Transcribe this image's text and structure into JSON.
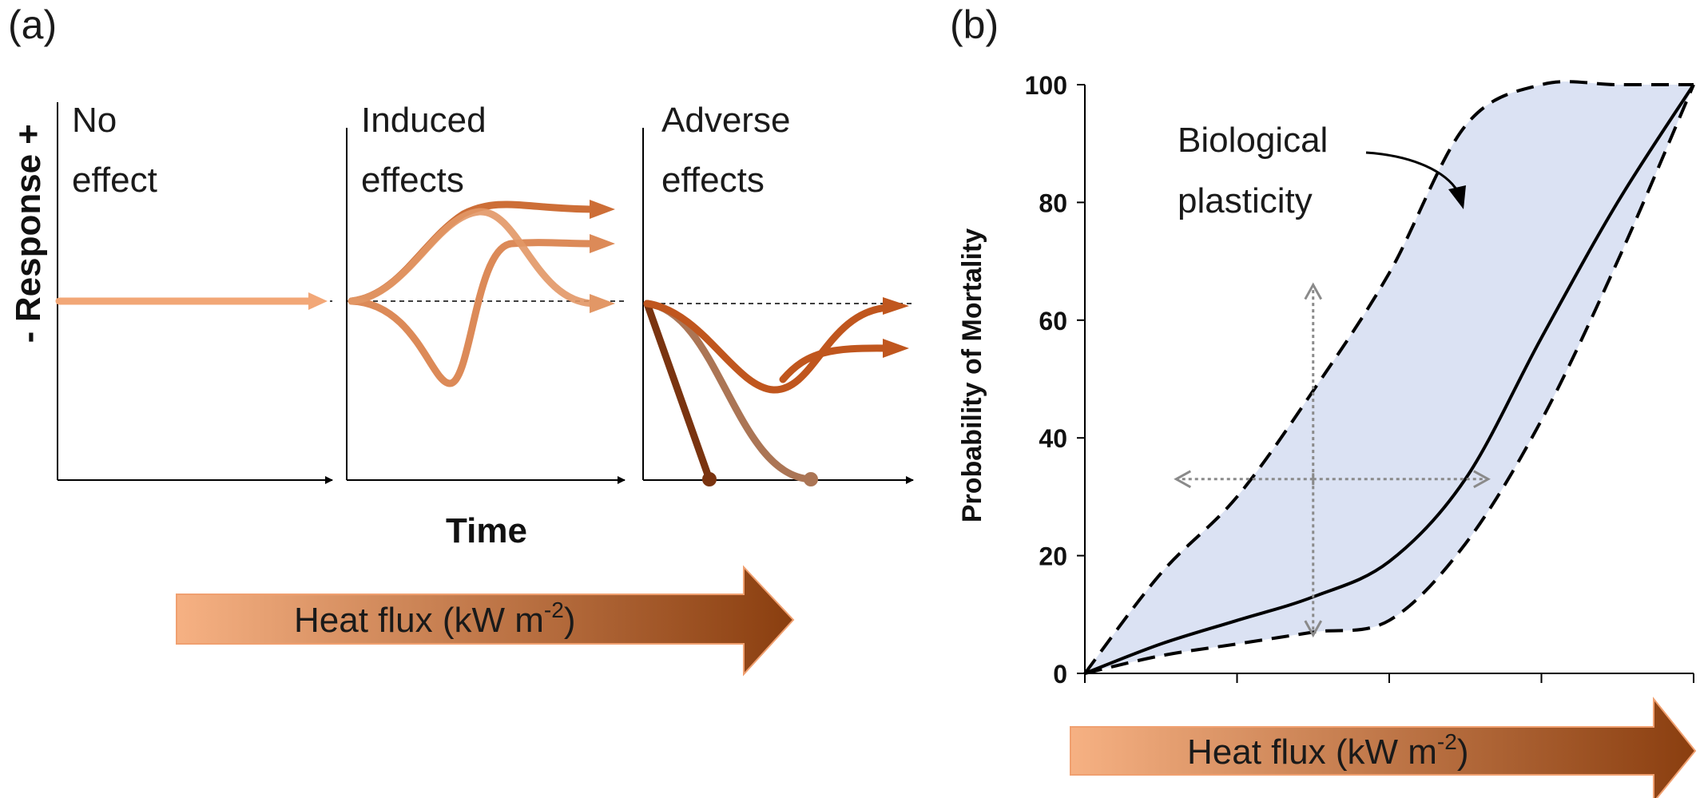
{
  "panel_a": {
    "label": "(a)",
    "y_axis": {
      "title": "Response",
      "plus": "+",
      "minus": "-"
    },
    "x_axis": {
      "title": "Time"
    },
    "subpanels": [
      {
        "title_line1": "No",
        "title_line2": "effect"
      },
      {
        "title_line1": "Induced",
        "title_line2": "effects"
      },
      {
        "title_line1": "Adverse",
        "title_line2": "effects"
      }
    ],
    "arrow_label_main": "Heat flux (kW m",
    "arrow_label_sup": "-2",
    "arrow_label_end": ")"
  },
  "panel_b": {
    "label": "(b)",
    "annotation_line1": "Biological",
    "annotation_line2": "plasticity",
    "arrow_label_main": "Heat flux (kW m",
    "arrow_label_sup": "-2",
    "arrow_label_end": ")",
    "colors": {
      "band": "#dbe2f3",
      "gradient_start": "#f6b183",
      "gradient_end": "#8a3e0f"
    }
  },
  "chart_data": {
    "type": "line",
    "title": "",
    "xlabel": "Heat flux (kW m-2)",
    "ylabel": "Probability of Mortality",
    "ylim": [
      0,
      100
    ],
    "yticks": [
      0,
      20,
      40,
      60,
      80,
      100
    ],
    "x_tick_count": 5,
    "x": [
      0,
      0.5,
      1.0,
      1.5,
      2.0,
      2.5,
      3.0,
      3.5,
      4.0
    ],
    "series": [
      {
        "style": "solid",
        "values": [
          0,
          5,
          9,
          13,
          19,
          33,
          57,
          80,
          100
        ]
      },
      {
        "style": "dashed-upper",
        "values": [
          0,
          17,
          30,
          48,
          68,
          93,
          100,
          100,
          100
        ]
      },
      {
        "style": "dashed-lower",
        "values": [
          0,
          3,
          5,
          7,
          9,
          22,
          43,
          70,
          100
        ]
      }
    ]
  }
}
